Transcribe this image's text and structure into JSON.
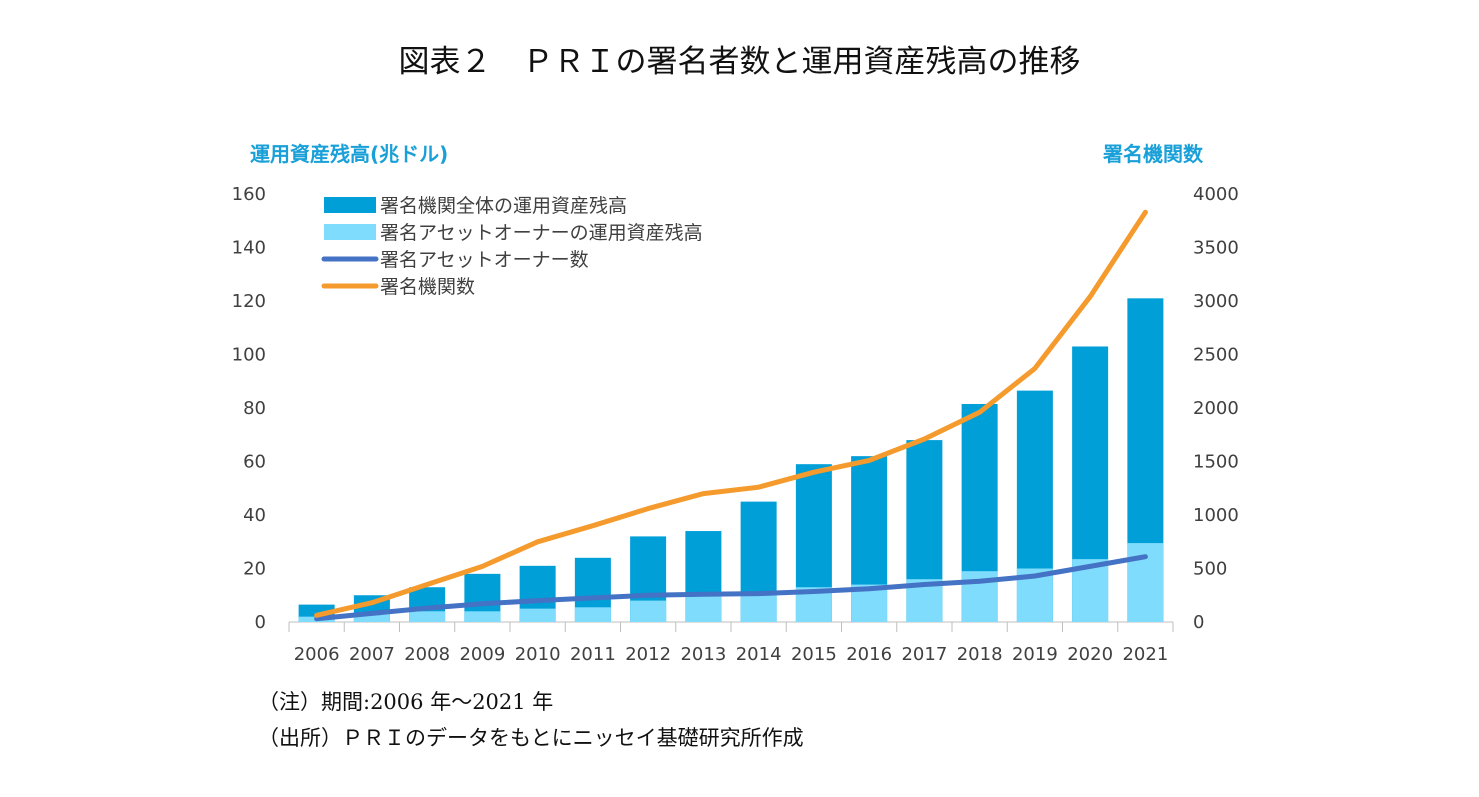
{
  "title": "図表２　ＰＲＩの署名者数と運用資産残高の推移",
  "notes": {
    "period": "（注）期間:2006 年～2021 年",
    "source": "（出所）ＰＲＩのデータをもとにニッセイ基礎研究所作成"
  },
  "colors": {
    "total_aum": "#009fd8",
    "owner_aum": "#7fdcfc",
    "owner_count": "#4472c4",
    "signatories": "#f59a2c",
    "axis_title": "#1aa0d8"
  },
  "chart_data": {
    "type": "bar",
    "title": "図表２　ＰＲＩの署名者数と運用資産残高の推移",
    "categories": [
      "2006",
      "2007",
      "2008",
      "2009",
      "2010",
      "2011",
      "2012",
      "2013",
      "2014",
      "2015",
      "2016",
      "2017",
      "2018",
      "2019",
      "2020",
      "2021"
    ],
    "ylabel": "運用資産残高(兆ドル)",
    "y2label": "署名機関数",
    "ylim": [
      0,
      160
    ],
    "y2lim": [
      0,
      4000
    ],
    "yticks": [
      "0",
      "20",
      "40",
      "60",
      "80",
      "100",
      "120",
      "140",
      "160"
    ],
    "y2ticks": [
      "0",
      "500",
      "1000",
      "1500",
      "2000",
      "2500",
      "3000",
      "3500",
      "4000"
    ],
    "legend_position": "top-left",
    "series": [
      {
        "name": "署名機関全体の運用資産残高",
        "type": "bar",
        "axis": "left",
        "values": [
          6.5,
          10,
          13,
          18,
          21,
          24,
          32,
          34,
          45,
          59,
          62,
          68,
          81.5,
          86.5,
          103,
          121
        ]
      },
      {
        "name": "署名アセットオーナーの運用資産残高",
        "type": "bar",
        "axis": "left",
        "values": [
          2,
          3,
          4,
          4,
          5,
          5.5,
          8,
          10,
          11,
          13,
          14,
          16,
          19,
          20,
          23.5,
          29.5
        ]
      },
      {
        "name": "署名アセットオーナー数",
        "type": "line",
        "axis": "right",
        "values": [
          30,
          80,
          130,
          170,
          200,
          225,
          250,
          260,
          265,
          285,
          310,
          350,
          380,
          430,
          520,
          610
        ]
      },
      {
        "name": "署名機関数",
        "type": "line",
        "axis": "right",
        "values": [
          63,
          180,
          350,
          520,
          750,
          900,
          1060,
          1200,
          1260,
          1400,
          1510,
          1710,
          1960,
          2370,
          3040,
          3830
        ]
      }
    ]
  }
}
